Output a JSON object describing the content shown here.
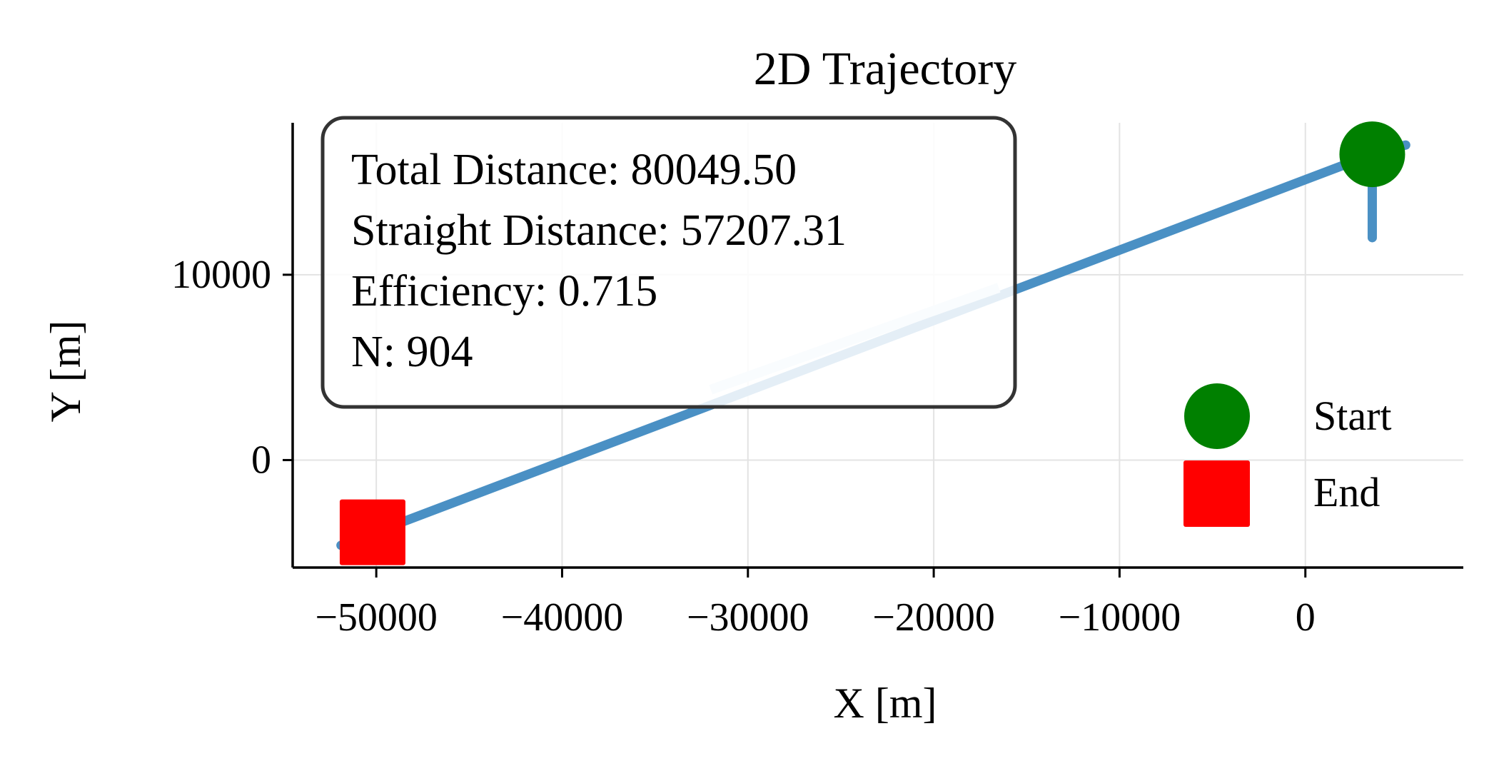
{
  "chart_data": {
    "type": "line",
    "title": "2D Trajectory",
    "xlabel": "X [m]",
    "ylabel": "Y [m]",
    "xlim": [
      -54500,
      8500
    ],
    "ylim": [
      -5800,
      18200
    ],
    "x_ticks": [
      -50000,
      -40000,
      -30000,
      -20000,
      -10000,
      0
    ],
    "x_tick_labels": [
      "−50000",
      "−40000",
      "−30000",
      "−20000",
      "−10000",
      "0"
    ],
    "y_ticks": [
      0,
      10000
    ],
    "y_tick_labels": [
      "0",
      "10000"
    ],
    "grid": true,
    "series": [
      {
        "color": "#4a90c4",
        "x": [
          5400,
          3600,
          3600,
          3600,
          -51900
        ],
        "y": [
          17000,
          16500,
          12000,
          16500,
          -4600
        ]
      }
    ],
    "faded_segment": {
      "color": "#d8e7f3",
      "x": [
        -32000,
        -16500
      ],
      "y": [
        3800,
        9300
      ]
    },
    "markers": {
      "start": {
        "label": "Start",
        "x": 3600,
        "y": 16500,
        "color": "#008000",
        "shape": "circle"
      },
      "end": {
        "label": "End",
        "x": -50200,
        "y": -3900,
        "color": "#ff0000",
        "shape": "square"
      }
    },
    "annotation": {
      "lines": [
        "Total Distance: 80049.50",
        "Straight Distance: 57207.31",
        "Efficiency: 0.715",
        "N: 904"
      ],
      "position": "top-left"
    },
    "legend": {
      "position": "lower-right",
      "entries": [
        {
          "label": "Start",
          "color": "#008000",
          "shape": "circle"
        },
        {
          "label": "End",
          "color": "#ff0000",
          "shape": "square"
        }
      ]
    }
  }
}
